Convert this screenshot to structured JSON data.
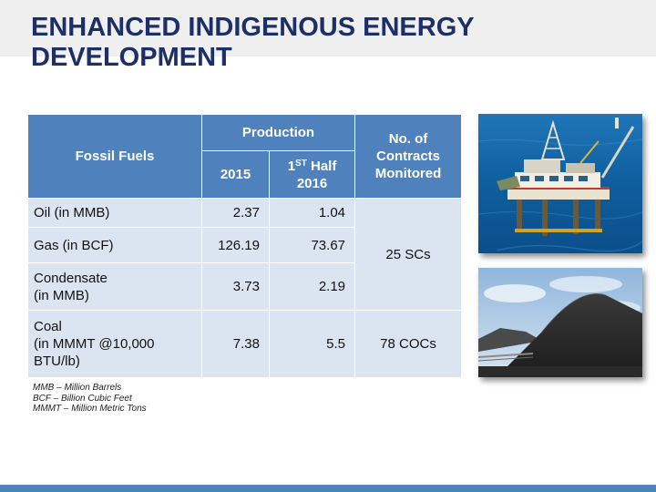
{
  "title": "ENHANCED INDIGENOUS ENERGY DEVELOPMENT",
  "table": {
    "headers": {
      "fossil_fuels": "Fossil Fuels",
      "production": "Production",
      "contracts_line1": "No. of",
      "contracts_line2": "Contracts",
      "contracts_line3": "Monitored",
      "year_2015": "2015",
      "half_prefix": "1",
      "half_sup": "ST",
      "half_word": "Half",
      "half_year": "2016"
    },
    "rows": [
      {
        "label_line1": "Oil (in MMB)",
        "v2015": "2.37",
        "v2016": "1.04"
      },
      {
        "label_line1": "Gas (in BCF)",
        "v2015": "126.19",
        "v2016": "73.67"
      },
      {
        "label_line1": "Condensate",
        "label_line2": "(in MMB)",
        "v2015": "3.73",
        "v2016": "2.19"
      },
      {
        "label_line1": "Coal",
        "label_line2": "(in MMMT @10,000",
        "label_line3": "BTU/lb)",
        "v2015": "7.38",
        "v2016": "5.5"
      }
    ],
    "contracts": {
      "oil_gas": "25 SCs",
      "coal": "78 COCs"
    }
  },
  "notes": [
    "MMB – Million Barrels",
    "BCF – Billion Cubic Feet",
    "MMMT – Million Metric Tons"
  ],
  "colors": {
    "title": "#1c2f66",
    "header_bg": "#4f81bd",
    "cell_bg": "#dbe5f1",
    "title_bar_bg": "#efefef"
  },
  "images": {
    "top": "offshore-oil-platform",
    "bottom": "coal-stockpile"
  }
}
